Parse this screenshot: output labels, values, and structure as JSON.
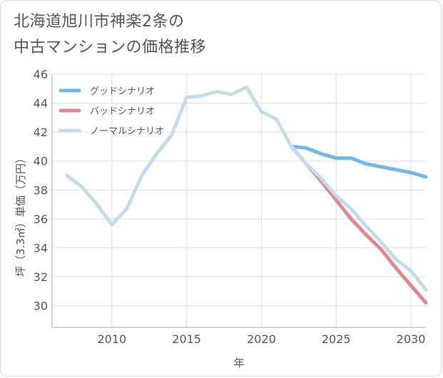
{
  "title_lines": [
    "北海道旭川市神楽2条の",
    "中古マンションの価格推移"
  ],
  "chart_data": {
    "type": "line",
    "xlabel": "年",
    "ylabel": "坪（3.3㎡）単価（万円）",
    "xlim": [
      2006,
      2031
    ],
    "ylim": [
      28.5,
      46
    ],
    "xticks": [
      2010,
      2015,
      2020,
      2025,
      2030
    ],
    "yticks": [
      30,
      32,
      34,
      36,
      38,
      40,
      42,
      44,
      46
    ],
    "grid": true,
    "legend": "top-left",
    "series": [
      {
        "name": "グッドシナリオ",
        "color": "#6fb8ea",
        "x": [
          2022,
          2023,
          2024,
          2025,
          2026,
          2027,
          2028,
          2029,
          2030,
          2031
        ],
        "values": [
          41.0,
          40.9,
          40.5,
          40.2,
          40.2,
          39.8,
          39.6,
          39.4,
          39.2,
          38.9
        ]
      },
      {
        "name": "バッドシナリオ",
        "color": "#e0878f",
        "x": [
          2022,
          2023,
          2024,
          2025,
          2026,
          2027,
          2028,
          2029,
          2030,
          2031
        ],
        "values": [
          41.0,
          39.8,
          38.6,
          37.3,
          36.0,
          34.9,
          33.9,
          32.6,
          31.4,
          30.2
        ]
      },
      {
        "name": "ノーマルシナリオ",
        "color": "#c2dde9",
        "x": [
          2007,
          2008,
          2009,
          2010,
          2011,
          2012,
          2013,
          2014,
          2015,
          2016,
          2017,
          2018,
          2019,
          2020,
          2021,
          2022,
          2023,
          2024,
          2025,
          2026,
          2027,
          2028,
          2029,
          2030,
          2031
        ],
        "values": [
          39.0,
          38.2,
          37.0,
          35.6,
          36.7,
          39.0,
          40.5,
          41.8,
          44.4,
          44.5,
          44.8,
          44.6,
          45.1,
          43.4,
          42.9,
          41.0,
          39.8,
          38.8,
          37.6,
          36.7,
          35.5,
          34.4,
          33.2,
          32.4,
          31.1
        ]
      }
    ]
  }
}
